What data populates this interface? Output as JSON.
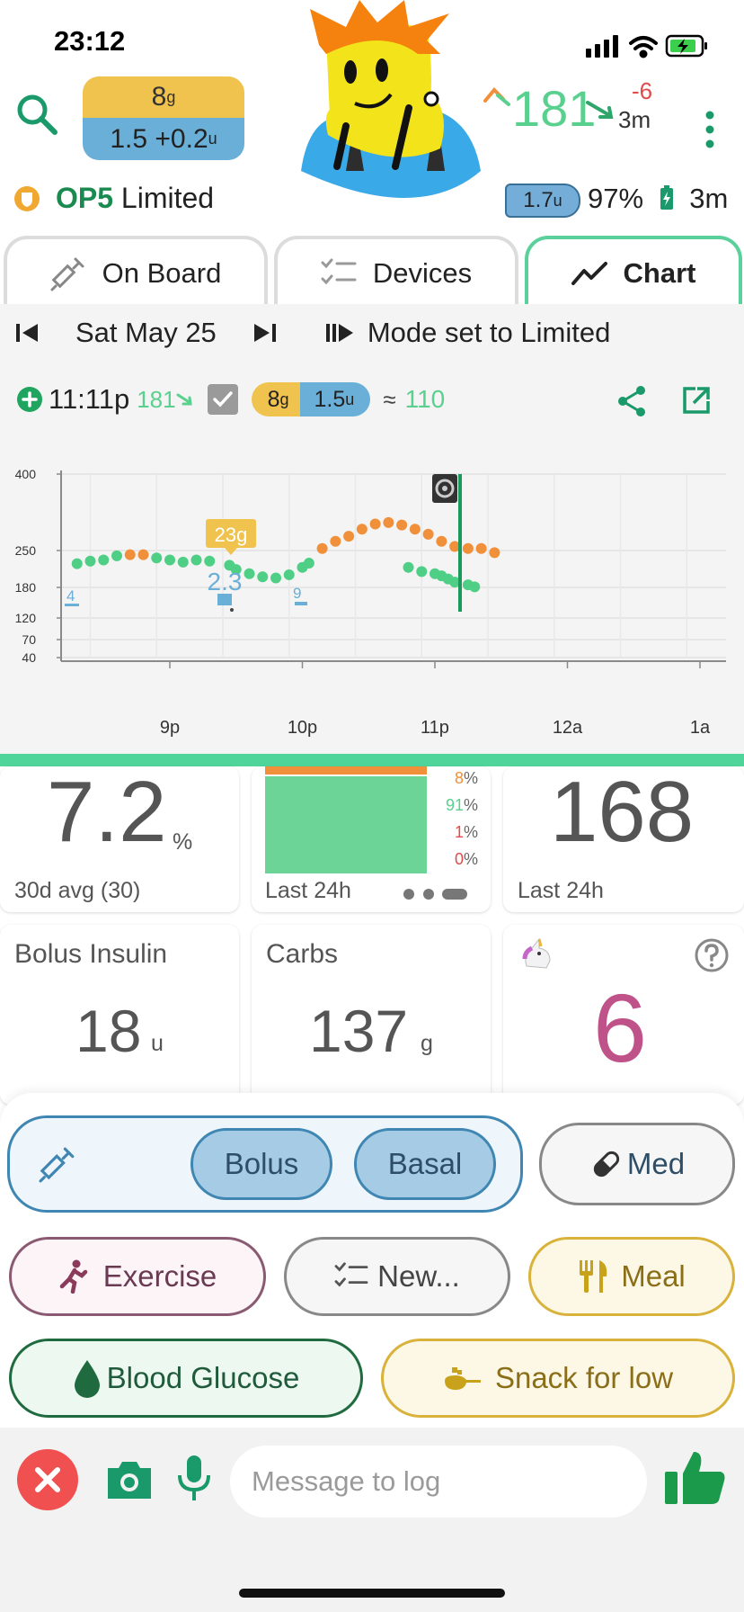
{
  "status": {
    "time": "23:12"
  },
  "header": {
    "carbs": "8",
    "carbs_unit": "g",
    "insulin": "1.5 +0.2",
    "insulin_unit": "u",
    "bg_value": "181",
    "bg_delta": "-6",
    "bg_age": "3m",
    "mode_name": "OP5",
    "mode_state": "Limited",
    "basal": "1.7",
    "basal_unit": "u",
    "battery": "97%",
    "battery_age": "3m"
  },
  "tabs": [
    {
      "label": "On Board"
    },
    {
      "label": "Devices"
    },
    {
      "label": "Chart"
    }
  ],
  "chart_header": {
    "date": "Sat May 25",
    "mode_note": "Mode set to Limited",
    "event_time": "11:11p",
    "event_bg": "181",
    "event_carbs": "8",
    "event_carbs_unit": "g",
    "event_insulin": "1.5",
    "event_insulin_unit": "u",
    "event_approx": "≈",
    "event_pred": "110"
  },
  "chart_data": {
    "type": "scatter",
    "y_ticks": [
      "400",
      "250",
      "180",
      "120",
      "70",
      "40"
    ],
    "x_ticks": [
      "9p",
      "10p",
      "11p",
      "12a",
      "1a"
    ],
    "carb_annotation": "23g",
    "bolus_annotation": "2.3",
    "small_boluses": [
      "4",
      "9"
    ],
    "series": [
      {
        "color": "#4fcf85",
        "points": [
          [
            20.3,
            225
          ],
          [
            20.4,
            230
          ],
          [
            20.5,
            232
          ],
          [
            20.6,
            240
          ],
          [
            20.9,
            236
          ],
          [
            21.0,
            232
          ],
          [
            21.1,
            228
          ],
          [
            21.2,
            232
          ],
          [
            21.3,
            230
          ],
          [
            21.45,
            222
          ],
          [
            21.5,
            214
          ],
          [
            21.6,
            206
          ],
          [
            21.7,
            200
          ],
          [
            21.8,
            198
          ],
          [
            21.9,
            204
          ],
          [
            22.0,
            218
          ],
          [
            22.05,
            226
          ],
          [
            22.8,
            218
          ],
          [
            22.9,
            210
          ],
          [
            23.0,
            206
          ],
          [
            23.05,
            202
          ],
          [
            23.1,
            196
          ],
          [
            23.15,
            190
          ],
          [
            23.25,
            185
          ],
          [
            23.3,
            181
          ]
        ]
      },
      {
        "color": "#f0903a",
        "points": [
          [
            20.7,
            242
          ],
          [
            20.8,
            242
          ],
          [
            22.15,
            254
          ],
          [
            22.25,
            268
          ],
          [
            22.35,
            278
          ],
          [
            22.45,
            292
          ],
          [
            22.55,
            302
          ],
          [
            22.65,
            305
          ],
          [
            22.75,
            300
          ],
          [
            22.85,
            292
          ],
          [
            22.95,
            282
          ],
          [
            23.05,
            268
          ],
          [
            23.15,
            258
          ],
          [
            23.25,
            254
          ],
          [
            23.35,
            254
          ],
          [
            23.45,
            246
          ]
        ]
      }
    ]
  },
  "cards": {
    "a1c": {
      "value": "7.2",
      "unit": "%",
      "label": "30d avg (30)"
    },
    "tir": {
      "label": "Last 24h",
      "pct_high": "8",
      "pct_in": "91",
      "pct_low": "1",
      "pct_vlow": "0",
      "pct_sign": "%"
    },
    "avg": {
      "value": "168",
      "label": "Last 24h"
    },
    "bolus": {
      "title": "Bolus Insulin",
      "value": "18",
      "unit": "u"
    },
    "carbs": {
      "title": "Carbs",
      "value": "137",
      "unit": "g"
    },
    "streak": {
      "value": "6"
    }
  },
  "actions": {
    "bolus": "Bolus",
    "basal": "Basal",
    "med": "Med",
    "exercise": "Exercise",
    "new": "New...",
    "meal": "Meal",
    "blood_glucose": "Blood Glucose",
    "snack": "Snack for low"
  },
  "composer": {
    "placeholder": "Message to log"
  }
}
